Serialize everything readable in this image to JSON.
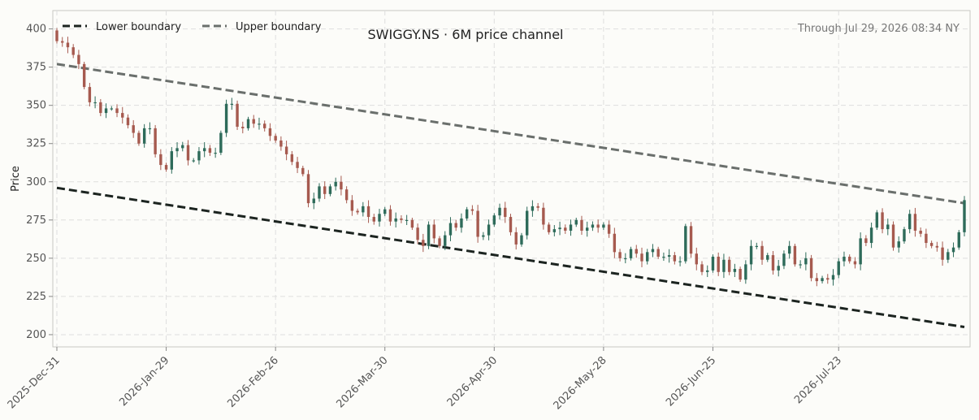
{
  "chart_data": {
    "type": "candlestick",
    "title": "SWIGGY.NS · 6M price channel",
    "as_of": "Through Jul 29, 2026 08:34 NY",
    "ylabel": "Price",
    "xlabel": "",
    "ylim": [
      192,
      412
    ],
    "yticks": [
      200,
      225,
      250,
      275,
      300,
      325,
      350,
      375,
      400
    ],
    "grid": true,
    "legend_position": "top-left",
    "x_ticks": [
      "2025-Dec-31",
      "2026-Jan-29",
      "2026-Feb-26",
      "2026-Mar-30",
      "2026-Apr-30",
      "2026-May-28",
      "2026-Jun-25",
      "2026-Jul-23"
    ],
    "x_tick_index": [
      0,
      20,
      40,
      60,
      80,
      100,
      120,
      143
    ],
    "colors": {
      "up": "#2e6b5a",
      "down": "#a65a4f",
      "lower_line": "#1c2420",
      "upper_line": "#6a6f6c"
    },
    "channel": {
      "lower": {
        "name": "Lower boundary",
        "start": 296,
        "end": 205
      },
      "upper": {
        "name": "Upper boundary",
        "start": 377,
        "end": 286
      }
    },
    "closes": [
      392,
      391,
      388,
      383,
      377,
      362,
      352,
      352,
      345,
      348,
      348,
      345,
      342,
      337,
      332,
      325,
      335,
      335,
      318,
      311,
      308,
      320,
      322,
      324,
      314,
      314,
      320,
      322,
      319,
      319,
      332,
      351,
      351,
      336,
      335,
      341,
      338,
      338,
      335,
      330,
      327,
      323,
      318,
      313,
      309,
      305,
      286,
      289,
      297,
      292,
      297,
      300,
      295,
      288,
      281,
      280,
      284,
      277,
      274,
      279,
      282,
      274,
      276,
      275,
      275,
      270,
      262,
      258,
      272,
      263,
      258,
      265,
      273,
      270,
      276,
      282,
      281,
      264,
      265,
      272,
      278,
      283,
      277,
      267,
      259,
      265,
      281,
      284,
      283,
      272,
      267,
      269,
      270,
      268,
      272,
      275,
      268,
      270,
      272,
      270,
      272,
      266,
      254,
      250,
      250,
      256,
      253,
      248,
      254,
      256,
      251,
      251,
      252,
      248,
      248,
      271,
      253,
      246,
      241,
      242,
      251,
      241,
      249,
      241,
      243,
      236,
      246,
      258,
      258,
      249,
      252,
      242,
      245,
      253,
      258,
      246,
      246,
      250,
      237,
      235,
      237,
      236,
      239,
      248,
      251,
      248,
      246,
      263,
      260,
      270,
      280,
      269,
      272,
      257,
      261,
      269,
      279,
      268,
      266,
      260,
      258,
      257,
      249,
      254,
      257,
      267,
      288
    ],
    "ohlc_note": "Opens follow previous close; wicks extend a few points beyond bodies."
  }
}
